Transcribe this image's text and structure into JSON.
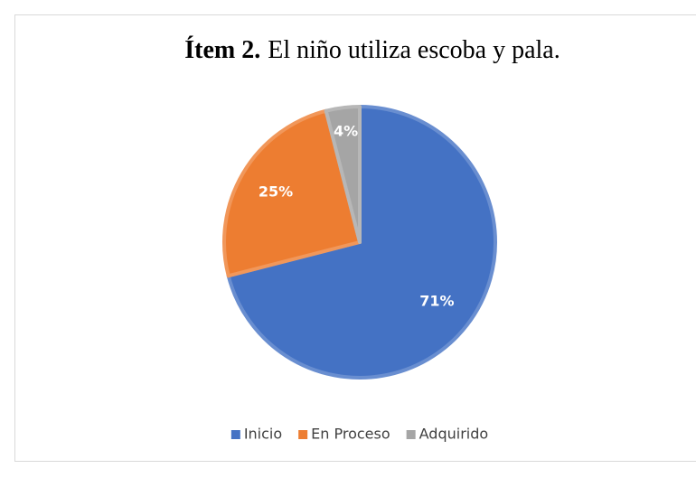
{
  "chart_data": {
    "type": "pie",
    "title_bold": "Ítem 2.",
    "title": "El niño utiliza escoba y pala.",
    "categories": [
      "Inicio",
      "En Proceso",
      "Adquirido"
    ],
    "values": [
      71,
      25,
      4
    ],
    "value_labels": [
      "71%",
      "25%",
      "4%"
    ],
    "colors": [
      "#4472c4",
      "#ed7d31",
      "#a5a5a5"
    ],
    "legend": "bottom"
  }
}
